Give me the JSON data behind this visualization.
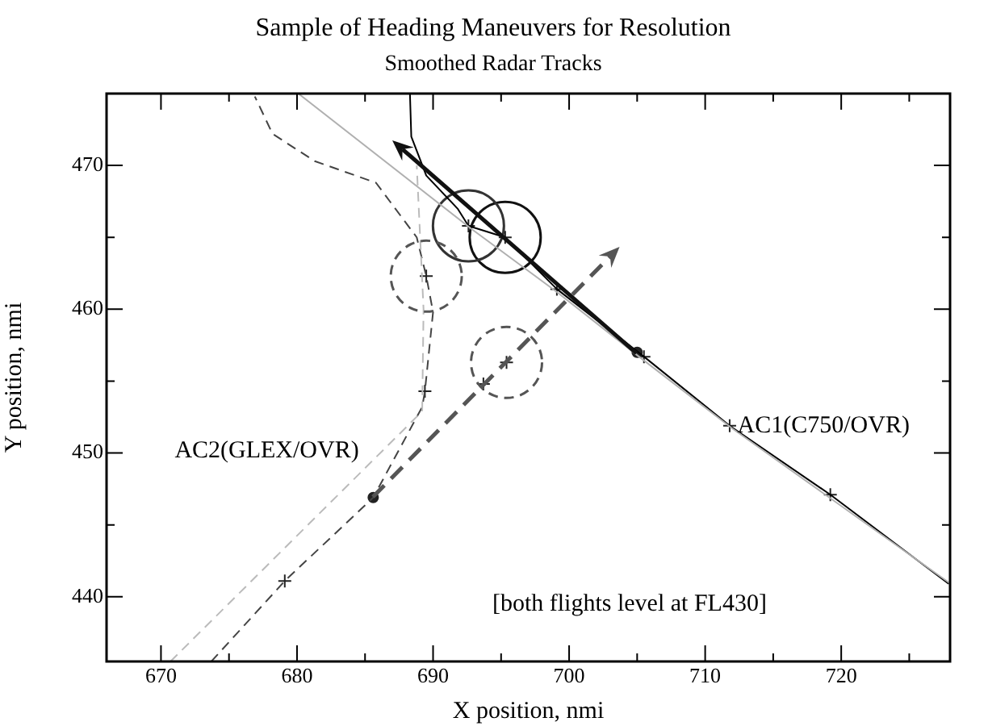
{
  "chart_data": {
    "type": "line",
    "title": "Sample of Heading Maneuvers for Resolution",
    "subtitle": "Smoothed Radar Tracks",
    "xlabel": "X position, nmi",
    "ylabel": "Y position, nmi",
    "xlim": [
      666,
      728
    ],
    "ylim": [
      435.5,
      475
    ],
    "xticks": [
      670,
      {
        "value": 675,
        "label": null
      },
      680,
      {
        "value": 685,
        "label": null
      },
      690,
      {
        "value": 695,
        "label": null
      },
      700,
      {
        "value": 705,
        "label": null
      },
      710,
      {
        "value": 715,
        "label": null
      },
      720,
      {
        "value": 725,
        "label": null
      }
    ],
    "yticks": [
      440,
      {
        "value": 445,
        "label": null
      },
      450,
      {
        "value": 455,
        "label": null
      },
      460,
      {
        "value": 465,
        "label": null
      },
      470
    ],
    "grid": false,
    "legend": false,
    "annotations": [
      "AC1(C750/OVR)",
      "AC2(GLEX/OVR)",
      "[both flights level at FL430]"
    ],
    "series": [
      {
        "color": "#b0b0b0",
        "line_style": "solid",
        "x": [
          680.1,
          692.8,
          699.1,
          705.0,
          712.0,
          727.9
        ],
        "values": [
          475.0,
          465.6,
          461.2,
          456.8,
          451.7,
          441.0
        ]
      },
      {
        "color": "#000000",
        "line_style": "solid",
        "x": [
          688.3,
          688.4,
          689.5,
          691.8,
          692.6,
          695.3,
          699.1,
          705.5,
          711.8,
          719.2,
          727.9
        ],
        "values": [
          475.0,
          472.0,
          469.3,
          467.0,
          465.8,
          465.0,
          461.4,
          456.7,
          451.9,
          447.1,
          440.9
        ]
      },
      {
        "color": "#bbbbbb",
        "line_style": "dashed",
        "x": [
          670.7,
          689.2,
          689.3,
          688.8
        ],
        "values": [
          435.5,
          452.9,
          460.0,
          470.0
        ]
      },
      {
        "color": "#444444",
        "line_style": "dashed",
        "x": [
          673.7,
          679.1,
          685.6,
          689.2,
          689.4,
          690.0,
          689.5,
          688.8,
          685.8,
          681.3,
          678.2,
          676.9
        ],
        "values": [
          435.5,
          441.1,
          446.9,
          453.2,
          454.3,
          459.8,
          462.3,
          465.0,
          468.8,
          470.3,
          472.2,
          474.8
        ]
      },
      {
        "type": "bubble",
        "color": "#333333",
        "line_style": "solid",
        "x": [
          692.6
        ],
        "values": [
          465.8
        ],
        "sizes": [
          1
        ]
      },
      {
        "type": "bubble",
        "color": "#111111",
        "line_style": "solid",
        "x": [
          695.3
        ],
        "values": [
          465.0
        ],
        "sizes": [
          1
        ]
      },
      {
        "type": "bubble",
        "color": "#555555",
        "line_style": "dashed",
        "x": [
          689.5
        ],
        "values": [
          462.3
        ],
        "sizes": [
          1
        ]
      },
      {
        "type": "bubble",
        "color": "#555555",
        "line_style": "dashed",
        "x": [
          695.4
        ],
        "values": [
          456.3
        ],
        "sizes": [
          1
        ]
      },
      {
        "type": "scatter",
        "color": "#222222",
        "marker": "cross",
        "x": [
          692.6,
          695.3,
          699.1,
          705.5,
          711.8,
          719.2,
          679.1,
          689.4,
          689.5,
          693.7,
          695.4
        ],
        "values": [
          465.8,
          465.0,
          461.4,
          456.7,
          451.9,
          447.1,
          441.1,
          454.3,
          462.3,
          454.8,
          456.3
        ]
      },
      {
        "type": "scatter",
        "color": "#222222",
        "marker": "circle",
        "x": [
          705.0,
          685.6
        ],
        "values": [
          457.0,
          446.9
        ]
      }
    ]
  }
}
